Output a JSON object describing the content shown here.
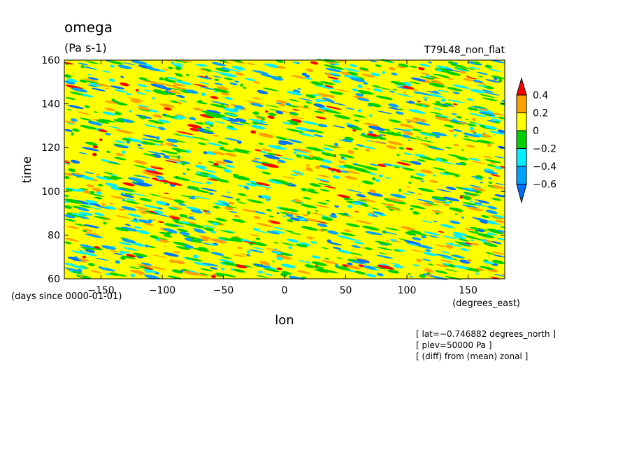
{
  "chart_data": {
    "type": "heatmap",
    "title": "omega",
    "units": "(Pa s-1)",
    "subtitle": "T79L48_non_flat",
    "xlabel": "lon",
    "xunits": "(degrees_east)",
    "ylabel": "time",
    "yunits": "(days since 0000-01-01)",
    "xlim": [
      -180,
      180
    ],
    "ylim": [
      60,
      160
    ],
    "xticks": [
      -150,
      -100,
      -50,
      0,
      50,
      100,
      150
    ],
    "yticks": [
      60,
      80,
      100,
      120,
      140,
      160
    ],
    "colorbar": {
      "levels": [
        -0.6,
        -0.4,
        -0.2,
        0,
        0.2,
        0.4
      ],
      "labels": [
        "0.4",
        "0.2",
        "0",
        "−0.2",
        "−0.4",
        "−0.6"
      ],
      "colors": [
        "#0070ff",
        "#00a0ff",
        "#00f0ff",
        "#00d000",
        "#ffff00",
        "#ffa000",
        "#ff0000"
      ]
    },
    "grid": false,
    "legend": "right"
  },
  "annotations": [
    "[ lat=−0.746882 degrees_north ]",
    "[ plev=50000 Pa ]",
    "[ (diff) from (mean) zonal ]"
  ]
}
